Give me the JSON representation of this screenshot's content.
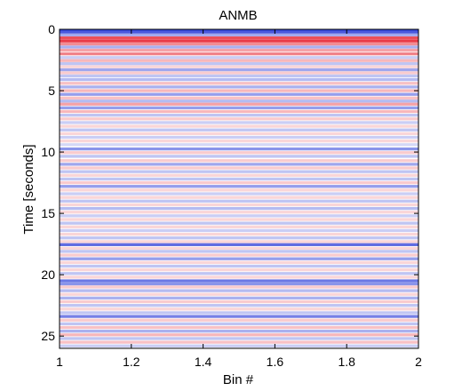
{
  "chart_data": {
    "type": "heatmap",
    "title": "ANMB",
    "xlabel": "Bin #",
    "ylabel": "Time [seconds]",
    "xlim": [
      1,
      2
    ],
    "ylim": [
      0,
      26
    ],
    "y_reversed": true,
    "grid": false,
    "colormap": "blue-white-red",
    "colors": {
      "positive": "#e8303c",
      "negative": "#2a3cd8",
      "neutral": "#ffffff"
    },
    "x_ticks": [
      "1",
      "1.2",
      "1.4",
      "1.6",
      "1.8",
      "2"
    ],
    "x_tick_values": [
      1,
      1.2,
      1.4,
      1.6,
      1.8,
      2
    ],
    "y_ticks": [
      "0",
      "5",
      "10",
      "15",
      "20",
      "25"
    ],
    "y_tick_values": [
      0,
      5,
      10,
      15,
      20,
      25
    ],
    "bands": [
      {
        "t": 0.05,
        "v": -0.95
      },
      {
        "t": 0.25,
        "v": -0.85
      },
      {
        "t": 0.45,
        "v": -0.45
      },
      {
        "t": 0.7,
        "v": 0.85
      },
      {
        "t": 0.95,
        "v": 0.95
      },
      {
        "t": 1.2,
        "v": 0.55
      },
      {
        "t": 1.45,
        "v": -0.4
      },
      {
        "t": 1.7,
        "v": 0.45
      },
      {
        "t": 2.0,
        "v": 0.6
      },
      {
        "t": 2.3,
        "v": -0.25
      },
      {
        "t": 2.55,
        "v": 0.35
      },
      {
        "t": 2.8,
        "v": -0.3
      },
      {
        "t": 3.05,
        "v": 0.2
      },
      {
        "t": 3.3,
        "v": -0.45
      },
      {
        "t": 3.55,
        "v": 0.25
      },
      {
        "t": 3.8,
        "v": -0.3
      },
      {
        "t": 4.1,
        "v": -0.35
      },
      {
        "t": 4.4,
        "v": 0.3
      },
      {
        "t": 4.7,
        "v": -0.4
      },
      {
        "t": 5.0,
        "v": 0.35
      },
      {
        "t": 5.3,
        "v": -0.5
      },
      {
        "t": 5.6,
        "v": 0.3
      },
      {
        "t": 5.85,
        "v": -0.35
      },
      {
        "t": 6.1,
        "v": 0.45
      },
      {
        "t": 6.4,
        "v": -0.5
      },
      {
        "t": 6.7,
        "v": 0.35
      },
      {
        "t": 7.0,
        "v": -0.3
      },
      {
        "t": 7.3,
        "v": 0.25
      },
      {
        "t": 7.6,
        "v": -0.25
      },
      {
        "t": 7.9,
        "v": 0.2
      },
      {
        "t": 8.2,
        "v": -0.3
      },
      {
        "t": 8.5,
        "v": 0.2
      },
      {
        "t": 8.8,
        "v": -0.25
      },
      {
        "t": 9.1,
        "v": 0.2
      },
      {
        "t": 9.4,
        "v": -0.2
      },
      {
        "t": 9.75,
        "v": -0.55
      },
      {
        "t": 10.05,
        "v": 0.25
      },
      {
        "t": 10.35,
        "v": -0.3
      },
      {
        "t": 10.7,
        "v": 0.25
      },
      {
        "t": 11.0,
        "v": -0.45
      },
      {
        "t": 11.3,
        "v": 0.25
      },
      {
        "t": 11.6,
        "v": -0.3
      },
      {
        "t": 11.9,
        "v": 0.2
      },
      {
        "t": 12.2,
        "v": -0.3
      },
      {
        "t": 12.5,
        "v": 0.25
      },
      {
        "t": 12.8,
        "v": -0.5
      },
      {
        "t": 13.1,
        "v": 0.2
      },
      {
        "t": 13.4,
        "v": -0.25
      },
      {
        "t": 13.7,
        "v": 0.2
      },
      {
        "t": 14.0,
        "v": -0.3
      },
      {
        "t": 14.3,
        "v": 0.2
      },
      {
        "t": 14.6,
        "v": -0.35
      },
      {
        "t": 14.9,
        "v": 0.2
      },
      {
        "t": 15.2,
        "v": -0.25
      },
      {
        "t": 15.5,
        "v": 0.2
      },
      {
        "t": 15.8,
        "v": -0.3
      },
      {
        "t": 16.1,
        "v": 0.2
      },
      {
        "t": 16.4,
        "v": -0.25
      },
      {
        "t": 16.7,
        "v": 0.2
      },
      {
        "t": 17.0,
        "v": -0.3
      },
      {
        "t": 17.3,
        "v": 0.2
      },
      {
        "t": 17.55,
        "v": -0.75
      },
      {
        "t": 17.85,
        "v": 0.2
      },
      {
        "t": 18.1,
        "v": -0.3
      },
      {
        "t": 18.4,
        "v": 0.25
      },
      {
        "t": 18.7,
        "v": -0.5
      },
      {
        "t": 19.0,
        "v": 0.2
      },
      {
        "t": 19.3,
        "v": -0.3
      },
      {
        "t": 19.6,
        "v": 0.2
      },
      {
        "t": 19.9,
        "v": -0.3
      },
      {
        "t": 20.2,
        "v": 0.2
      },
      {
        "t": 20.5,
        "v": -0.7
      },
      {
        "t": 20.75,
        "v": -0.55
      },
      {
        "t": 21.0,
        "v": 0.25
      },
      {
        "t": 21.3,
        "v": -0.35
      },
      {
        "t": 21.6,
        "v": 0.2
      },
      {
        "t": 21.9,
        "v": -0.4
      },
      {
        "t": 22.2,
        "v": 0.25
      },
      {
        "t": 22.5,
        "v": -0.3
      },
      {
        "t": 22.8,
        "v": 0.2
      },
      {
        "t": 23.1,
        "v": -0.3
      },
      {
        "t": 23.4,
        "v": -0.65
      },
      {
        "t": 23.7,
        "v": 0.25
      },
      {
        "t": 24.0,
        "v": -0.3
      },
      {
        "t": 24.3,
        "v": 0.3
      },
      {
        "t": 24.6,
        "v": -0.4
      },
      {
        "t": 24.9,
        "v": 0.35
      },
      {
        "t": 25.2,
        "v": -0.3
      },
      {
        "t": 25.5,
        "v": 0.3
      },
      {
        "t": 25.8,
        "v": -0.25
      }
    ]
  }
}
